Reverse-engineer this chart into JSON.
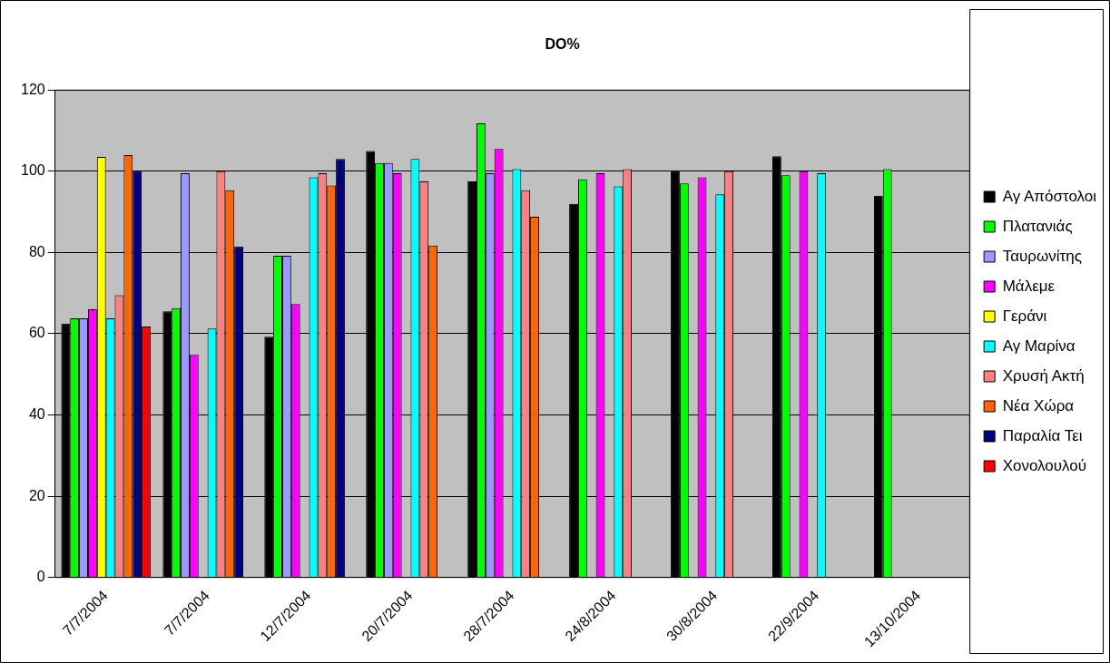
{
  "chart_data": {
    "type": "bar",
    "title": "DO%",
    "categories": [
      "7/7/2004",
      "7/7/2004",
      "12/7/2004",
      "20/7/2004",
      "28/7/2004",
      "24/8/2004",
      "30/8/2004",
      "22/9/2004",
      "13/10/2004"
    ],
    "series": [
      {
        "name": "Αγ Απόστολοι",
        "color": "#000000",
        "values": [
          62.5,
          65.5,
          59.3,
          105,
          97.5,
          92,
          100,
          103.7,
          94
        ]
      },
      {
        "name": "Πλατανιάς",
        "color": "#00ff00",
        "values": [
          63.8,
          66.3,
          79.2,
          102,
          111.8,
          98,
          97,
          99,
          100.5
        ]
      },
      {
        "name": "Ταυρωνίτης",
        "color": "#9999ff",
        "values": [
          63.8,
          99.5,
          79.2,
          102,
          99.5,
          null,
          null,
          null,
          null
        ]
      },
      {
        "name": "Μάλεμε",
        "color": "#ff00ff",
        "values": [
          66,
          54.8,
          67.3,
          99.5,
          105.5,
          99.5,
          98.5,
          100,
          null
        ]
      },
      {
        "name": "Γεράνι",
        "color": "#ffff00",
        "values": [
          103.5,
          null,
          null,
          null,
          null,
          null,
          null,
          null,
          null
        ]
      },
      {
        "name": "Αγ Μαρίνα",
        "color": "#00ffff",
        "values": [
          63.8,
          61.3,
          98.5,
          103,
          100.5,
          96.3,
          94.3,
          99.5,
          null
        ]
      },
      {
        "name": "Χρυσή Ακτή",
        "color": "#ff8080",
        "values": [
          69.5,
          100,
          99.5,
          97.5,
          95.3,
          100.5,
          100,
          null,
          null
        ]
      },
      {
        "name": "Νέα Χώρα",
        "color": "#ff6600",
        "values": [
          104,
          95.3,
          96.5,
          81.7,
          88.8,
          null,
          null,
          null,
          null
        ]
      },
      {
        "name": "Παραλία Τει",
        "color": "#000080",
        "values": [
          100,
          81.5,
          103,
          null,
          null,
          null,
          null,
          null,
          null
        ]
      },
      {
        "name": "Χονολουλού",
        "color": "#ff0000",
        "values": [
          61.8,
          null,
          null,
          null,
          null,
          null,
          null,
          null,
          null
        ]
      }
    ],
    "ylim": [
      0,
      120
    ],
    "yticks": [
      0,
      20,
      40,
      60,
      80,
      100,
      120
    ],
    "grid": "y",
    "legend": "right"
  }
}
